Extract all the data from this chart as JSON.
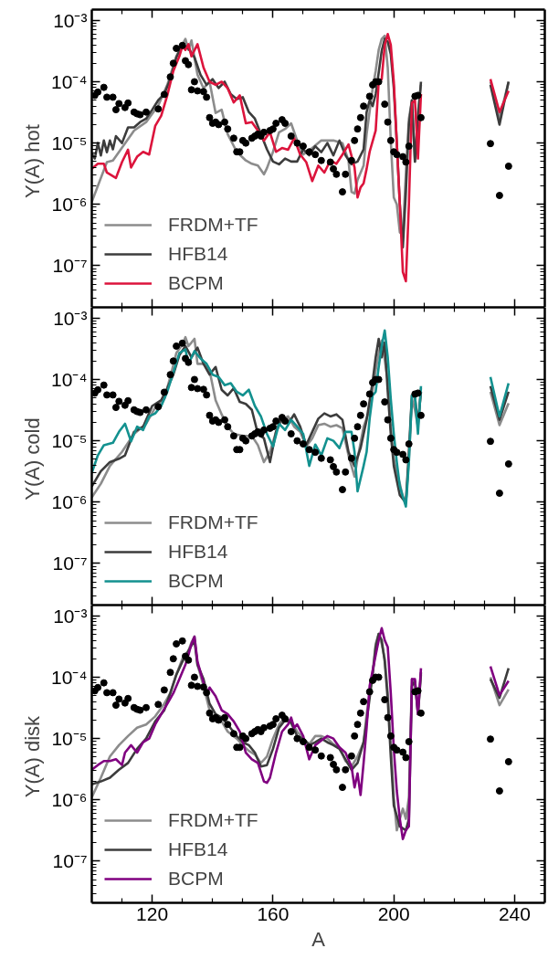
{
  "chart_data": [
    {
      "type": "line",
      "ylabel": "Y(A)  hot",
      "xlim": [
        100,
        250
      ],
      "ylim": [
        2.1e-08,
        0.0015
      ],
      "log": "y",
      "legend": "bottom left",
      "tick_labels": "y",
      "xticks": [
        {
          "value": 110,
          "label": null
        },
        120,
        {
          "value": 130,
          "label": null
        },
        {
          "value": 140,
          "label": null
        },
        {
          "value": 150,
          "label": null
        },
        160,
        {
          "value": 170,
          "label": null
        },
        {
          "value": 180,
          "label": null
        },
        {
          "value": 190,
          "label": null
        },
        200,
        {
          "value": 210,
          "label": null
        },
        {
          "value": 220,
          "label": null
        },
        {
          "value": 230,
          "label": null
        },
        240
      ],
      "yticks": [
        {
          "value": 1e-07,
          "label": "10⁻⁷"
        },
        {
          "value": 1e-06,
          "label": "10⁻⁶"
        },
        {
          "value": 1e-05,
          "label": "10⁻⁵"
        },
        {
          "value": 0.0001,
          "label": "10⁻⁴"
        },
        {
          "value": 0.001,
          "label": "10⁻³"
        }
      ],
      "series": [
        {
          "name": "FRDM+TF",
          "color": "#8c8c8c",
          "x": [
            100,
            102,
            105,
            107,
            114,
            118,
            122,
            125,
            128,
            131,
            132,
            133,
            135,
            137,
            139,
            141,
            143,
            145,
            148,
            151,
            153,
            155,
            157,
            158,
            160,
            162,
            164,
            166,
            168,
            170,
            173,
            176,
            180,
            183,
            185,
            186,
            187,
            188,
            190,
            191,
            193,
            194,
            195,
            196,
            197,
            198,
            199,
            200,
            201,
            202,
            203,
            204,
            205,
            206,
            207,
            208,
            209,
            220,
            232,
            235,
            238
          ],
          "values": [
            1.1e-06,
            2e-06,
            4.9e-06,
            5.2e-06,
            1.6e-05,
            2.2e-05,
            4.1e-05,
            8.9e-05,
            0.00026,
            0.0005,
            0.00033,
            0.00047,
            0.00013,
            7.8e-05,
            0.0001,
            3.1e-05,
            3.5e-05,
            1.4e-05,
            7.2e-06,
            5.2e-06,
            4.6e-06,
            4.3e-06,
            3.1e-06,
            3.9e-06,
            7.2e-06,
            1.5e-05,
            1.7e-05,
            2.1e-05,
            1.1e-05,
            6.5e-06,
            8.3e-06,
            1.1e-05,
            1.1e-05,
            1e-05,
            5.2e-06,
            1.6e-06,
            1.5e-06,
            2.5e-06,
            4.3e-06,
            1.4e-05,
            7.8e-05,
            0.00015,
            0.00033,
            0.0005,
            0.00056,
            0.00017,
            1.1e-05,
            1.3e-06,
            1e-06,
            3.5e-07,
            3.2e-07,
            3.2e-06,
            2.5e-05,
            5e-05,
            5e-06,
            3.2e-05,
            8.9e-05,
            null,
            0.0001,
            2.5e-05,
            0.0001
          ]
        },
        {
          "name": "HFB14",
          "color": "#3c3c3c",
          "x": [
            100,
            101,
            102,
            103,
            104,
            105,
            106,
            107,
            108,
            110,
            112,
            114,
            116,
            118,
            120,
            122,
            124,
            126,
            128,
            130,
            132,
            134,
            136,
            138,
            140,
            142,
            144,
            146,
            148,
            150,
            152,
            154,
            156,
            158,
            160,
            162,
            164,
            166,
            168,
            170,
            172,
            174,
            176,
            178,
            180,
            182,
            184,
            186,
            188,
            190,
            191,
            192,
            193,
            194,
            195,
            196,
            197,
            198,
            199,
            200,
            201,
            202,
            203,
            204,
            205,
            206,
            207,
            208,
            209,
            220,
            232,
            235,
            238
          ],
          "values": [
            6.8e-06,
            5.6e-06,
            1e-05,
            6.3e-06,
            1.1e-05,
            7.1e-06,
            1.1e-05,
            7.9e-06,
            1.3e-05,
            1e-05,
            1.8e-05,
            1.8e-05,
            2.2e-05,
            2.5e-05,
            3.5e-05,
            5e-05,
            6.3e-05,
            0.00011,
            0.00025,
            0.0004,
            0.00035,
            0.00025,
            0.00013,
            8.9e-05,
            0.00011,
            7.9e-05,
            0.0001,
            6.3e-05,
            5.2e-05,
            5.6e-05,
            3.2e-05,
            2.5e-05,
            1.4e-05,
            7.9e-06,
            5e-06,
            4.5e-06,
            5.6e-06,
            5e-06,
            5e-06,
            7.9e-06,
            6.3e-06,
            8.9e-06,
            7.1e-06,
            1e-05,
            6.3e-06,
            1.1e-05,
            6.3e-06,
            4.5e-06,
            5e-06,
            7.9e-06,
            3.2e-05,
            5e-05,
            4e-05,
            6.3e-05,
            0.00014,
            0.00032,
            0.0005,
            0.00045,
            0.00028,
            7.9e-05,
            1e-05,
            1e-06,
            2e-07,
            1.6e-06,
            2e-05,
            5e-05,
            5e-06,
            2.5e-05,
            0.0001,
            null,
            8.9e-05,
            2e-05,
            0.0001
          ]
        },
        {
          "name": "BCPM",
          "color": "#dc143c",
          "x": [
            100,
            102,
            104,
            105,
            108,
            110,
            112,
            113,
            115,
            117,
            119,
            121,
            123,
            125,
            127,
            129,
            130,
            131,
            132,
            133,
            135,
            137,
            139,
            141,
            143,
            145,
            147,
            149,
            151,
            153,
            155,
            157,
            159,
            161,
            163,
            165,
            167,
            169,
            171,
            173,
            175,
            177,
            179,
            181,
            183,
            185,
            187,
            188,
            189,
            190,
            191,
            192,
            194,
            195,
            196,
            197,
            198,
            199,
            200,
            201,
            202,
            203,
            204,
            205,
            206,
            207,
            208,
            209,
            220,
            232,
            235,
            238
          ],
          "values": [
            3.8e-06,
            4.6e-06,
            4.6e-06,
            3.3e-06,
            2.7e-06,
            4.9e-06,
            7.8e-06,
            4e-06,
            6e-06,
            7.2e-06,
            6.5e-06,
            1.9e-05,
            2.8e-05,
            6e-05,
            0.00015,
            0.00026,
            0.00038,
            0.00033,
            0.00041,
            0.00026,
            0.00041,
            0.00017,
            0.0001,
            8.9e-05,
            0.0001,
            7.8e-05,
            4.6e-05,
            6e-05,
            2.1e-05,
            2.2e-05,
            1.6e-05,
            1.1e-05,
            1.5e-05,
            7.2e-06,
            8.3e-06,
            7.8e-06,
            1.2e-05,
            6.5e-06,
            4.9e-06,
            2.4e-06,
            4.3e-06,
            3.3e-06,
            5.2e-06,
            4.6e-06,
            6.5e-06,
            9.5e-06,
            4e-06,
            1.3e-06,
            1.9e-06,
            2.2e-06,
            3.8e-06,
            7.2e-06,
            1.6e-05,
            0.0001,
            0.00011,
            0.0004,
            0.0006,
            0.0004,
            0.0001,
            1e-05,
            1e-06,
            7.9e-08,
            5.6e-08,
            1e-06,
            4.5e-05,
            5e-05,
            5.6e-06,
            6.3e-05,
            null,
            0.00011,
            3.2e-05,
            7.1e-05
          ]
        },
        {
          "type": "scatter",
          "marker": "circle",
          "color": "#000000",
          "x": [
            101,
            102,
            104,
            105,
            107,
            108,
            109,
            111,
            112,
            114,
            115,
            116,
            118,
            122,
            124,
            126,
            127,
            128,
            130,
            131,
            132,
            133,
            134,
            135,
            137,
            138,
            139,
            140,
            141,
            142,
            144,
            145,
            147,
            148,
            149,
            150,
            151,
            153,
            154,
            155,
            156,
            157,
            159,
            160,
            161,
            163,
            164,
            166,
            168,
            170,
            172,
            174,
            176,
            179,
            180,
            181,
            183,
            184,
            186,
            187,
            188,
            189,
            190,
            192,
            193,
            194,
            195,
            197,
            198,
            199,
            200,
            201,
            203,
            204,
            205,
            207,
            208,
            209,
            232,
            235,
            238
          ],
          "values": [
            6e-05,
            6.8e-05,
            8.1e-05,
            5.6e-05,
            5.6e-05,
            3.5e-05,
            4.4e-05,
            3.8e-05,
            4.5e-05,
            3.2e-05,
            3e-05,
            2.9e-05,
            3.2e-05,
            3.6e-05,
            6.2e-05,
            0.00012,
            0.0002,
            0.00035,
            0.00039,
            0.00022,
            0.00019,
            7.4e-05,
            0.0001,
            7.1e-05,
            6.9e-05,
            5.6e-05,
            2.6e-05,
            2.1e-05,
            2.2e-05,
            2e-05,
            2.2e-05,
            1.7e-05,
            1.2e-05,
            7.2e-06,
            7.2e-06,
            1.1e-05,
            1e-05,
            1.2e-05,
            1.3e-05,
            1.4e-05,
            1.3e-05,
            1.5e-05,
            1.6e-05,
            1.7e-05,
            2.1e-05,
            2.4e-05,
            2.1e-05,
            1.3e-05,
            1e-05,
            8.9e-06,
            7.2e-06,
            6.5e-06,
            5.2e-06,
            4.9e-06,
            3.8e-06,
            3.1e-06,
            1.6e-06,
            3.1e-06,
            5.2e-06,
            1.1e-05,
            1.7e-05,
            2.6e-05,
            4e-05,
            5.8e-05,
            8.9e-05,
            0.0001,
            0.0001,
            4.3e-05,
            2.2e-05,
            1.1e-05,
            7.2e-06,
            6.5e-06,
            6e-06,
            4.9e-06,
            8.9e-06,
            5.8e-05,
            6e-05,
            2.6e-05,
            9.8e-06,
            1.4e-06,
            4.2e-06
          ]
        }
      ]
    },
    {
      "type": "line",
      "ylabel": "Y(A)  cold",
      "xlim": [
        100,
        250
      ],
      "ylim": [
        2.1e-08,
        0.0015
      ],
      "log": "y",
      "legend": "bottom left",
      "tick_labels": "y",
      "xticks": [
        {
          "value": 110,
          "label": null
        },
        120,
        {
          "value": 130,
          "label": null
        },
        {
          "value": 140,
          "label": null
        },
        {
          "value": 150,
          "label": null
        },
        160,
        {
          "value": 170,
          "label": null
        },
        {
          "value": 180,
          "label": null
        },
        {
          "value": 190,
          "label": null
        },
        200,
        {
          "value": 210,
          "label": null
        },
        {
          "value": 220,
          "label": null
        },
        {
          "value": 230,
          "label": null
        },
        240
      ],
      "yticks": [
        {
          "value": 1e-07,
          "label": "10⁻⁷"
        },
        {
          "value": 1e-06,
          "label": "10⁻⁶"
        },
        {
          "value": 1e-05,
          "label": "10⁻⁵"
        },
        {
          "value": 0.0001,
          "label": "10⁻⁴"
        },
        {
          "value": 0.001,
          "label": "10⁻³"
        }
      ],
      "series": [
        {
          "name": "FRDM+TF",
          "color": "#8c8c8c",
          "x": [
            100,
            103,
            106,
            110,
            114,
            118,
            121,
            124,
            126,
            128,
            130,
            131,
            132,
            133,
            134,
            135,
            137,
            139,
            141,
            143,
            145,
            147,
            150,
            153,
            155,
            157,
            159,
            161,
            163,
            165,
            167,
            169,
            171,
            173,
            175,
            177,
            179,
            181,
            183,
            185,
            187,
            188,
            190,
            192,
            194,
            195,
            196,
            197,
            198,
            199,
            200,
            201,
            202,
            203,
            204,
            205,
            206,
            207,
            208,
            209,
            220,
            232,
            235,
            238
          ],
          "values": [
            1.2e-06,
            2e-06,
            3.9e-06,
            6.6e-06,
            1.3e-05,
            1.9e-05,
            3.5e-05,
            4.8e-05,
            0.00011,
            0.00027,
            0.00037,
            0.00049,
            0.00035,
            0.0004,
            0.00046,
            0.00018,
            0.00018,
            0.00014,
            4.6e-05,
            2.7e-05,
            1.7e-05,
            1.3e-05,
            1.2e-05,
            1.2e-05,
            8.5e-06,
            4.5e-06,
            6.6e-06,
            1.4e-05,
            2.2e-05,
            2.5e-05,
            1.7e-05,
            1.4e-05,
            8.1e-06,
            1.1e-05,
            1.8e-05,
            1.9e-05,
            1.7e-05,
            1.8e-05,
            1.6e-05,
            5.8e-06,
            2.6e-06,
            5.1e-06,
            1.7e-05,
            3.2e-05,
            0.00014,
            0.00027,
            0.00043,
            0.00021,
            9.3e-05,
            1.7e-05,
            5.1e-06,
            3e-06,
            2e-06,
            1.2e-06,
            9.8e-07,
            5.1e-06,
            4.8e-05,
            3.2e-05,
            1.7e-05,
            7.2e-05,
            null,
            6.3e-05,
            1.8e-05,
            4.1e-05
          ]
        },
        {
          "name": "HFB14",
          "color": "#3c3c3c",
          "x": [
            100,
            103,
            106,
            109,
            111,
            114,
            117,
            120,
            123,
            125,
            127,
            129,
            131,
            133,
            135,
            137,
            139,
            141,
            143,
            145,
            147,
            149,
            151,
            153,
            155,
            157,
            159,
            161,
            163,
            165,
            167,
            169,
            171,
            173,
            175,
            177,
            179,
            181,
            183,
            185,
            187,
            189,
            191,
            193,
            194,
            195,
            196,
            197,
            198,
            199,
            200,
            202,
            204,
            205,
            206,
            207,
            208,
            209,
            220,
            232,
            235,
            238
          ],
          "values": [
            1.8e-06,
            3.2e-06,
            4.5e-06,
            5.1e-06,
            5.8e-06,
            1.4e-05,
            1.7e-05,
            3.7e-05,
            4.6e-05,
            7.2e-05,
            0.00012,
            0.00025,
            0.00035,
            0.00023,
            0.00033,
            0.00018,
            0.00012,
            0.00016,
            6.8e-05,
            5.5e-05,
            7.2e-05,
            4.3e-05,
            4e-05,
            3.2e-05,
            1.3e-05,
            1.1e-05,
            4.5e-06,
            1.4e-05,
            2.5e-05,
            1.9e-05,
            2.7e-05,
            1.7e-05,
            8.5e-06,
            1.4e-05,
            2.3e-05,
            2.8e-05,
            2.5e-05,
            2.7e-05,
            2.2e-05,
            6.6e-06,
            3.9e-06,
            7.6e-06,
            2.2e-05,
            9.3e-05,
            0.00023,
            0.00046,
            0.00023,
            0.0004,
            6.3e-05,
            1.3e-05,
            3.9e-06,
            1.3e-06,
            9.8e-07,
            6.6e-06,
            5.5e-05,
            5.1e-05,
            1.9e-05,
            6.3e-05,
            null,
            7.8e-05,
            2.2e-05,
            6.3e-05
          ]
        },
        {
          "name": "BCPM",
          "color": "#13918f",
          "x": [
            100,
            102,
            104,
            107,
            109,
            111,
            113,
            115,
            117,
            119,
            121,
            123,
            125,
            127,
            129,
            131,
            132,
            134,
            136,
            138,
            140,
            142,
            144,
            146,
            148,
            150,
            152,
            154,
            156,
            158,
            160,
            162,
            164,
            166,
            168,
            170,
            172,
            174,
            176,
            178,
            180,
            182,
            184,
            186,
            187,
            188,
            190,
            191,
            192,
            193,
            194,
            195,
            196,
            197,
            198,
            199,
            200,
            201,
            202,
            204,
            205,
            206,
            207,
            208,
            209,
            220,
            232,
            235,
            238
          ],
          "values": [
            3e-06,
            5.8e-06,
            8.5e-06,
            9.3e-06,
            1.4e-05,
            1.9e-05,
            9.8e-06,
            1.7e-05,
            1.5e-05,
            2.5e-05,
            2.8e-05,
            3.7e-05,
            6.3e-05,
            0.00013,
            0.00027,
            0.00031,
            0.00018,
            0.00029,
            0.00022,
            0.00018,
            0.00012,
            0.00011,
            8.1e-05,
            8.7e-05,
            6.3e-05,
            5.5e-05,
            6.8e-05,
            3.7e-05,
            2.5e-05,
            1.3e-05,
            8.1e-06,
            1.9e-05,
            1.5e-05,
            2.2e-05,
            1.7e-05,
            1.3e-05,
            3.9e-06,
            8.7e-06,
            5.8e-06,
            1.1e-05,
            1e-05,
            7.6e-06,
            1.4e-05,
            1.4e-05,
            6.6e-06,
            1.5e-06,
            3.9e-06,
            6.6e-06,
            2.3e-05,
            5.5e-05,
            6.3e-05,
            0.00016,
            0.00035,
            0.00063,
            0.00023,
            4.8e-05,
            1.3e-05,
            4.5e-06,
            1.8e-06,
            8.5e-07,
            4.5e-06,
            5.5e-05,
            5.5e-05,
            1.3e-05,
            7.8e-05,
            null,
            0.00011,
            2.5e-05,
            8.7e-05
          ]
        },
        {
          "type": "scatter",
          "marker": "circle",
          "color": "#000000",
          "x": [
            101,
            102,
            104,
            105,
            107,
            108,
            109,
            111,
            112,
            114,
            115,
            116,
            118,
            122,
            124,
            126,
            127,
            128,
            130,
            131,
            132,
            133,
            134,
            135,
            137,
            138,
            139,
            140,
            141,
            142,
            144,
            145,
            147,
            148,
            149,
            150,
            151,
            153,
            154,
            155,
            156,
            157,
            159,
            160,
            161,
            163,
            164,
            166,
            168,
            170,
            172,
            174,
            176,
            179,
            180,
            181,
            183,
            184,
            186,
            187,
            188,
            189,
            190,
            192,
            193,
            194,
            195,
            197,
            198,
            199,
            200,
            201,
            203,
            204,
            205,
            207,
            208,
            209,
            232,
            235,
            238
          ],
          "values": [
            6e-05,
            6.8e-05,
            8.1e-05,
            5.6e-05,
            5.6e-05,
            3.5e-05,
            4.4e-05,
            3.8e-05,
            4.5e-05,
            3.2e-05,
            3e-05,
            2.9e-05,
            3.2e-05,
            3.6e-05,
            6.2e-05,
            0.00012,
            0.0002,
            0.00035,
            0.00039,
            0.00022,
            0.00019,
            7.4e-05,
            0.0001,
            7.1e-05,
            6.9e-05,
            5.6e-05,
            2.6e-05,
            2.1e-05,
            2.2e-05,
            2e-05,
            2.2e-05,
            1.7e-05,
            1.2e-05,
            7.2e-06,
            7.2e-06,
            1.1e-05,
            1e-05,
            1.2e-05,
            1.3e-05,
            1.4e-05,
            1.3e-05,
            1.5e-05,
            1.6e-05,
            1.7e-05,
            2.1e-05,
            2.4e-05,
            2.1e-05,
            1.3e-05,
            1e-05,
            8.9e-06,
            7.2e-06,
            6.5e-06,
            5.2e-06,
            4.9e-06,
            3.8e-06,
            3.1e-06,
            1.6e-06,
            3.1e-06,
            5.2e-06,
            1.1e-05,
            1.7e-05,
            2.6e-05,
            4e-05,
            5.8e-05,
            8.9e-05,
            0.0001,
            0.0001,
            4.3e-05,
            2.2e-05,
            1.1e-05,
            7.2e-06,
            6.5e-06,
            6e-06,
            4.9e-06,
            8.9e-06,
            5.8e-05,
            6e-05,
            2.6e-05,
            9.8e-06,
            1.4e-06,
            4.2e-06
          ]
        }
      ]
    },
    {
      "type": "line",
      "ylabel": "Y(A)  disk",
      "xlabel": "A",
      "xlim": [
        100,
        250
      ],
      "ylim": [
        2.1e-08,
        0.0015
      ],
      "log": "y",
      "legend": "bottom left",
      "xticks": [
        {
          "value": 110,
          "label": null
        },
        120,
        {
          "value": 130,
          "label": null
        },
        {
          "value": 140,
          "label": null
        },
        {
          "value": 150,
          "label": null
        },
        160,
        {
          "value": 170,
          "label": null
        },
        {
          "value": 180,
          "label": null
        },
        {
          "value": 190,
          "label": null
        },
        200,
        {
          "value": 210,
          "label": null
        },
        {
          "value": 220,
          "label": null
        },
        {
          "value": 230,
          "label": null
        },
        240
      ],
      "yticks": [
        {
          "value": 1e-07,
          "label": "10⁻⁷"
        },
        {
          "value": 1e-06,
          "label": "10⁻⁶"
        },
        {
          "value": 1e-05,
          "label": "10⁻⁵"
        },
        {
          "value": 0.0001,
          "label": "10⁻⁴"
        },
        {
          "value": 0.001,
          "label": "10⁻³"
        }
      ],
      "series": [
        {
          "name": "FRDM+TF",
          "color": "#8c8c8c",
          "x": [
            100,
            103,
            106,
            109,
            112,
            115,
            118,
            121,
            124,
            126,
            128,
            130,
            132,
            133,
            134,
            135,
            137,
            139,
            141,
            143,
            145,
            148,
            150,
            152,
            154,
            156,
            158,
            160,
            162,
            164,
            166,
            168,
            170,
            172,
            174,
            176,
            178,
            180,
            182,
            184,
            186,
            188,
            190,
            191,
            193,
            194,
            195,
            196,
            197,
            198,
            199,
            200,
            201,
            202,
            203,
            204,
            205,
            206,
            207,
            208,
            209,
            220,
            232,
            235,
            238
          ],
          "values": [
            1.1e-06,
            2.3e-06,
            5.1e-06,
            7.8e-06,
            1.1e-05,
            1.5e-05,
            1.7e-05,
            2.3e-05,
            3.7e-05,
            5.5e-05,
            0.00011,
            0.0002,
            0.00027,
            0.00037,
            0.00046,
            0.00016,
            7.2e-05,
            2.9e-05,
            1.9e-05,
            1.9e-05,
            1.3e-05,
            1e-05,
            7.8e-06,
            6.3e-06,
            5.5e-06,
            4e-06,
            5.1e-06,
            1e-05,
            1.7e-05,
            2.2e-05,
            1.9e-05,
            1.3e-05,
            1e-05,
            8.1e-06,
            1.1e-05,
            1.1e-05,
            1e-05,
            8.1e-06,
            7.2e-06,
            4.3e-06,
            3.5e-06,
            5.1e-06,
            8.7e-06,
            2.5e-05,
            0.00012,
            0.00035,
            0.00051,
            0.00035,
            0.0002,
            5.5e-05,
            7.8e-06,
            1.1e-06,
            3.2e-07,
            4.9e-07,
            7.2e-07,
            4.9e-07,
            1.1e-06,
            9.3e-05,
            8.1e-05,
            2.5e-05,
            0.00011,
            null,
            0.0001,
            3.5e-05,
            6.3e-05
          ]
        },
        {
          "name": "HFB14",
          "color": "#3c3c3c",
          "x": [
            100,
            103,
            106,
            109,
            112,
            115,
            118,
            121,
            124,
            126,
            128,
            130,
            132,
            134,
            135,
            137,
            139,
            141,
            143,
            145,
            148,
            150,
            152,
            154,
            156,
            158,
            160,
            162,
            164,
            166,
            168,
            170,
            172,
            174,
            176,
            178,
            180,
            182,
            184,
            186,
            188,
            190,
            191,
            193,
            194,
            195,
            196,
            197,
            198,
            199,
            200,
            202,
            204,
            205,
            206,
            207,
            208,
            209,
            220,
            232,
            235,
            238
          ],
          "values": [
            1.8e-06,
            2e-06,
            2.3e-06,
            3.1e-06,
            4e-06,
            6.8e-06,
            1e-05,
            1.9e-05,
            2.9e-05,
            5.5e-05,
            0.00011,
            0.00018,
            0.00027,
            0.0004,
            0.00016,
            9.3e-05,
            3.7e-05,
            2.5e-05,
            2.2e-05,
            1.7e-05,
            1.1e-05,
            8.7e-06,
            7.8e-06,
            5.9e-06,
            3.5e-06,
            3.7e-06,
            6.8e-06,
            1.5e-05,
            2e-05,
            1.8e-05,
            1.1e-05,
            1e-05,
            7.8e-06,
            8.7e-06,
            1e-05,
            8.7e-06,
            7.8e-06,
            6.8e-06,
            4.6e-06,
            3.1e-06,
            4e-06,
            8.7e-06,
            1.9e-05,
            0.00011,
            0.00031,
            0.00051,
            0.0004,
            0.00018,
            4.3e-05,
            5.1e-06,
            8.1e-07,
            3.7e-07,
            3.2e-07,
            4.9e-07,
            7.2e-05,
            8.7e-05,
            2.5e-05,
            0.00012,
            null,
            9.3e-05,
            4.6e-05,
            0.00014
          ]
        },
        {
          "name": "BCPM",
          "color": "#800080",
          "x": [
            100,
            102,
            104,
            106,
            108,
            110,
            111,
            113,
            115,
            117,
            119,
            121,
            123,
            125,
            127,
            129,
            131,
            132,
            133,
            134,
            135,
            137,
            138,
            139,
            141,
            143,
            145,
            147,
            149,
            151,
            153,
            155,
            157,
            158,
            159,
            161,
            163,
            165,
            166,
            167,
            168,
            170,
            172,
            174,
            176,
            178,
            180,
            182,
            184,
            186,
            187,
            188,
            189,
            190,
            191,
            192,
            194,
            195,
            196,
            197,
            198,
            199,
            200,
            201,
            202,
            203,
            204,
            205,
            206,
            207,
            208,
            209,
            220,
            232,
            235,
            238
          ],
          "values": [
            3.1e-06,
            3.7e-06,
            4.3e-06,
            4.3e-06,
            4.6e-06,
            3.7e-06,
            5.9e-06,
            7.8e-06,
            5.9e-06,
            8.7e-06,
            1e-05,
            1.7e-05,
            2.5e-05,
            3.7e-05,
            5.5e-05,
            9.3e-05,
            0.00016,
            0.00023,
            0.00035,
            0.00046,
            0.00018,
            8.1e-05,
            5.5e-05,
            6.8e-05,
            4.9e-05,
            2.9e-05,
            2.5e-05,
            1.9e-05,
            1.3e-05,
            5.9e-06,
            4.6e-06,
            4e-06,
            2e-06,
            1.9e-06,
            2.3e-06,
            5.9e-06,
            1.3e-05,
            1.7e-05,
            2.2e-05,
            1.5e-05,
            1.7e-05,
            1.1e-05,
            4.6e-06,
            7.8e-06,
            9.3e-06,
            1.1e-05,
            1e-05,
            7.2e-06,
            5.9e-06,
            3.5e-06,
            1.6e-06,
            2.7e-06,
            1.2e-06,
            4e-06,
            1.5e-05,
            7.2e-05,
            0.00023,
            0.0004,
            0.00063,
            0.0004,
            0.00031,
            5.5e-05,
            6.8e-06,
            1.4e-06,
            4.9e-07,
            2.3e-07,
            3.2e-07,
            3.7e-07,
            9.3e-05,
            9.3e-05,
            2.5e-05,
            0.00014,
            null,
            0.00015,
            5.1e-05,
            8.7e-05
          ]
        },
        {
          "type": "scatter",
          "marker": "circle",
          "color": "#000000",
          "x": [
            101,
            102,
            104,
            105,
            107,
            108,
            109,
            111,
            112,
            114,
            115,
            116,
            118,
            122,
            124,
            126,
            127,
            128,
            130,
            131,
            132,
            133,
            134,
            135,
            137,
            138,
            139,
            140,
            141,
            142,
            144,
            145,
            147,
            148,
            149,
            150,
            151,
            153,
            154,
            155,
            156,
            157,
            159,
            160,
            161,
            163,
            164,
            166,
            168,
            170,
            172,
            174,
            176,
            179,
            180,
            181,
            183,
            184,
            186,
            187,
            188,
            189,
            190,
            192,
            193,
            194,
            195,
            197,
            198,
            199,
            200,
            201,
            203,
            204,
            205,
            207,
            208,
            209,
            232,
            235,
            238
          ],
          "values": [
            6e-05,
            6.8e-05,
            8.1e-05,
            5.6e-05,
            5.6e-05,
            3.5e-05,
            4.4e-05,
            3.8e-05,
            4.5e-05,
            3.2e-05,
            3e-05,
            2.9e-05,
            3.2e-05,
            3.6e-05,
            6.2e-05,
            0.00012,
            0.0002,
            0.00035,
            0.00039,
            0.00022,
            0.00019,
            7.4e-05,
            0.0001,
            7.1e-05,
            6.9e-05,
            5.6e-05,
            2.6e-05,
            2.1e-05,
            2.2e-05,
            2e-05,
            2.2e-05,
            1.7e-05,
            1.2e-05,
            7.2e-06,
            7.2e-06,
            1.1e-05,
            1e-05,
            1.2e-05,
            1.3e-05,
            1.4e-05,
            1.3e-05,
            1.5e-05,
            1.6e-05,
            1.7e-05,
            2.1e-05,
            2.4e-05,
            2.1e-05,
            1.3e-05,
            1e-05,
            8.9e-06,
            7.2e-06,
            6.5e-06,
            5.2e-06,
            4.9e-06,
            3.8e-06,
            3.1e-06,
            1.6e-06,
            3.1e-06,
            5.2e-06,
            1.1e-05,
            1.7e-05,
            2.6e-05,
            4e-05,
            5.8e-05,
            8.9e-05,
            0.0001,
            0.0001,
            4.3e-05,
            2.2e-05,
            1.1e-05,
            7.2e-06,
            6.5e-06,
            6e-06,
            4.9e-06,
            8.9e-06,
            5.8e-05,
            6e-05,
            2.6e-05,
            9.8e-06,
            1.4e-06,
            4.2e-06
          ]
        }
      ]
    }
  ]
}
